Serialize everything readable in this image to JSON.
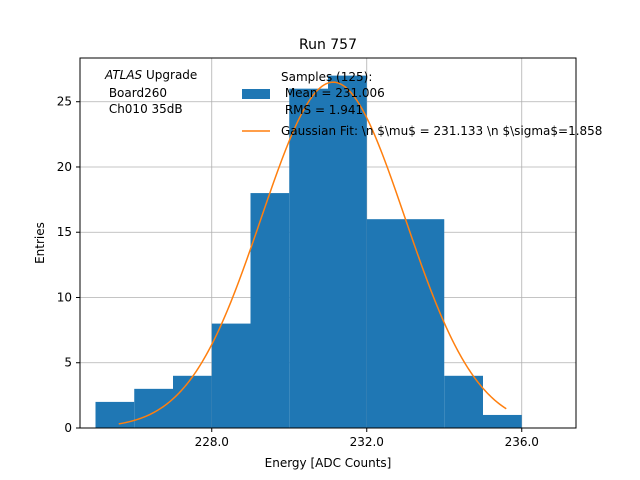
{
  "chart_data": {
    "type": "bar",
    "title": "Run 757",
    "xlabel": "Energy [ADC Counts]",
    "ylabel": "Entries",
    "xlim": [
      224.6,
      237.4
    ],
    "ylim": [
      0,
      28.35
    ],
    "xticks": [
      228,
      232,
      236
    ],
    "xtick_labels": [
      "228.0",
      "232.0",
      "236.0"
    ],
    "yticks": [
      0,
      5,
      10,
      15,
      20,
      25
    ],
    "ytick_labels": [
      "0",
      "5",
      "10",
      "15",
      "20",
      "25"
    ],
    "grid": true,
    "bins": [
      {
        "x0": 225,
        "x1": 226,
        "count": 2
      },
      {
        "x0": 226,
        "x1": 227,
        "count": 3
      },
      {
        "x0": 227,
        "x1": 228,
        "count": 4
      },
      {
        "x0": 228,
        "x1": 229,
        "count": 8
      },
      {
        "x0": 229,
        "x1": 230,
        "count": 18
      },
      {
        "x0": 230,
        "x1": 231,
        "count": 26
      },
      {
        "x0": 231,
        "x1": 232,
        "count": 27
      },
      {
        "x0": 232,
        "x1": 233,
        "count": 16
      },
      {
        "x0": 233,
        "x1": 234,
        "count": 16
      },
      {
        "x0": 234,
        "x1": 235,
        "count": 4
      },
      {
        "x0": 235,
        "x1": 236,
        "count": 1
      }
    ],
    "fit": {
      "type": "gaussian",
      "mu": 231.133,
      "sigma": 1.858,
      "amplitude": 26.5,
      "x_range": [
        225.6,
        235.6
      ]
    },
    "colors": {
      "hist": "#1f77b4",
      "fit": "#ff7f0e",
      "grid": "#b0b0b0"
    },
    "legend": {
      "placement": "top-right",
      "entries": [
        {
          "kind": "patch",
          "lines": [
            "Samples (125):",
            " Mean = 231.006",
            " RMS = 1.941"
          ]
        },
        {
          "kind": "line",
          "lines": [
            "Gaussian Fit: \\n $\\mu$ = 231.133 \\n $\\sigma$=1.858"
          ]
        }
      ]
    },
    "annotation": {
      "italic_word": "ATLAS",
      "line1_rest": " Upgrade",
      "line2": " Board260",
      "line3": " Ch010 35dB"
    }
  }
}
